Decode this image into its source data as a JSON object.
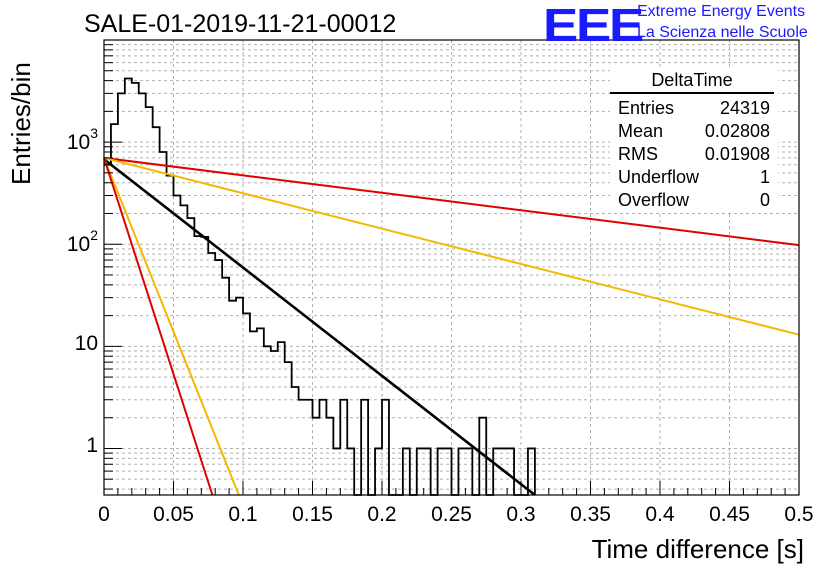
{
  "header": {
    "run_title": "SALE-01-2019-11-21-00012",
    "logo_text": "EEE",
    "logo_line1": "Extreme Energy Events",
    "logo_line2": "La Scienza nelle Scuole"
  },
  "stats_box": {
    "title": "DeltaTime",
    "rows": [
      {
        "label": "Entries",
        "value": "24319"
      },
      {
        "label": "Mean",
        "value": "0.02808"
      },
      {
        "label": "RMS",
        "value": "0.01908"
      },
      {
        "label": "Underflow",
        "value": "1"
      },
      {
        "label": "Overflow",
        "value": "0"
      }
    ]
  },
  "chart_data": {
    "type": "line",
    "xlabel": "Time difference [s]",
    "ylabel": "Entries/bin",
    "xlim": [
      0,
      0.5
    ],
    "ylim": [
      0.35,
      10000
    ],
    "yscale": "log",
    "grid": true,
    "x_ticks": [
      "0",
      "0.05",
      "0.1",
      "0.15",
      "0.2",
      "0.25",
      "0.3",
      "0.35",
      "0.4",
      "0.45",
      "0.5"
    ],
    "y_ticks": [
      {
        "value": 1,
        "base": "1",
        "exp": ""
      },
      {
        "value": 10,
        "base": "10",
        "exp": ""
      },
      {
        "value": 100,
        "base": "10",
        "exp": "2"
      },
      {
        "value": 1000,
        "base": "10",
        "exp": "3"
      }
    ],
    "histogram": {
      "name": "DeltaTime",
      "color": "#000000",
      "bin_width": 0.005,
      "x_start": 0,
      "counts": [
        600,
        1500,
        3000,
        4200,
        3800,
        3000,
        2200,
        1400,
        800,
        470,
        300,
        240,
        180,
        120,
        118,
        82,
        70,
        47,
        28,
        30,
        21,
        14,
        15,
        10,
        9,
        11,
        7,
        4,
        3,
        3,
        2,
        3,
        2,
        1,
        3,
        1,
        0,
        3,
        0,
        1,
        3,
        0,
        0,
        1,
        0,
        1,
        1,
        0,
        1,
        1,
        0,
        1,
        1,
        0,
        2,
        0,
        1,
        1,
        1,
        0,
        0,
        1
      ]
    },
    "fits": [
      {
        "color": "#e00000",
        "points": [
          [
            0,
            700
          ],
          [
            0.5,
            98
          ]
        ]
      },
      {
        "color": "#f5b800",
        "points": [
          [
            0,
            700
          ],
          [
            0.5,
            13
          ]
        ]
      },
      {
        "color": "#000000",
        "points": [
          [
            0,
            680
          ],
          [
            0.31,
            0.35
          ]
        ]
      },
      {
        "color": "#f5b800",
        "points": [
          [
            0,
            700
          ],
          [
            0.097,
            0.35
          ]
        ]
      },
      {
        "color": "#e00000",
        "points": [
          [
            0,
            700
          ],
          [
            0.078,
            0.35
          ]
        ]
      }
    ]
  }
}
